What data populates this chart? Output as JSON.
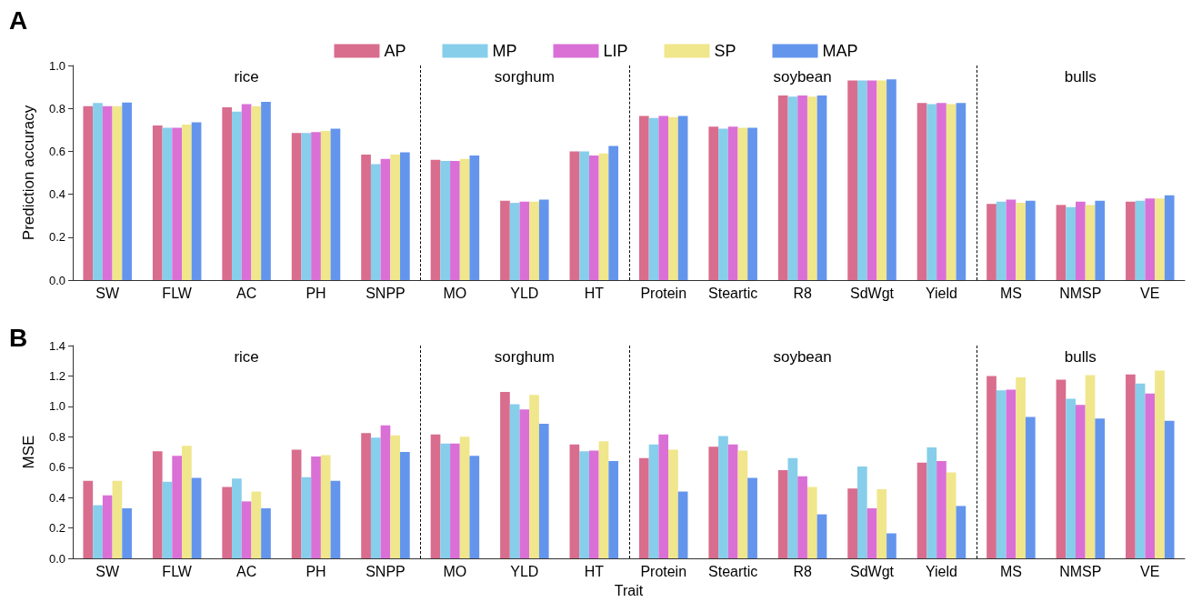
{
  "chart_data": [
    {
      "type": "bar",
      "ylabel": "Prediction accuracy",
      "legend": "top",
      "categories": [
        "SW",
        "FLW",
        "AC",
        "PH",
        "SNPP",
        "MO",
        "YLD",
        "HT",
        "Protein",
        "Steartic",
        "R8",
        "SdWgt",
        "Yield",
        "MS",
        "NMSP",
        "VE"
      ],
      "series": [
        {
          "name": "AP",
          "color": "#d96d8e",
          "values": [
            0.81,
            0.72,
            0.805,
            0.685,
            0.585,
            0.56,
            0.37,
            0.6,
            0.765,
            0.715,
            0.86,
            0.93,
            0.825,
            0.355,
            0.35,
            0.365
          ]
        },
        {
          "name": "MP",
          "color": "#87ceeb",
          "values": [
            0.825,
            0.71,
            0.785,
            0.685,
            0.54,
            0.555,
            0.36,
            0.6,
            0.755,
            0.705,
            0.855,
            0.93,
            0.82,
            0.365,
            0.34,
            0.37
          ]
        },
        {
          "name": "LIP",
          "color": "#da70d6",
          "values": [
            0.81,
            0.71,
            0.82,
            0.69,
            0.565,
            0.555,
            0.365,
            0.58,
            0.765,
            0.715,
            0.86,
            0.93,
            0.825,
            0.375,
            0.365,
            0.38
          ]
        },
        {
          "name": "SP",
          "color": "#f0e68c",
          "values": [
            0.81,
            0.725,
            0.81,
            0.695,
            0.585,
            0.565,
            0.365,
            0.59,
            0.76,
            0.71,
            0.855,
            0.93,
            0.82,
            0.36,
            0.35,
            0.38
          ]
        },
        {
          "name": "MAP",
          "color": "#6495ed",
          "values": [
            0.827,
            0.735,
            0.83,
            0.705,
            0.595,
            0.58,
            0.375,
            0.625,
            0.765,
            0.71,
            0.86,
            0.935,
            0.825,
            0.37,
            0.37,
            0.395
          ]
        }
      ],
      "ylim": [
        0,
        1.0
      ],
      "yticks": [
        {
          "value": 0,
          "label": "0.0"
        },
        {
          "value": 0.2,
          "label": "0.2"
        },
        {
          "value": 0.4,
          "label": "0.4"
        },
        {
          "value": 0.6,
          "label": "0.6"
        },
        {
          "value": 0.8,
          "label": "0.8"
        },
        {
          "value": 1.0,
          "label": "1.0"
        }
      ],
      "annotations": [
        "A",
        "rice",
        "sorghum",
        "soybean",
        "bulls"
      ]
    },
    {
      "type": "bar",
      "ylabel": "MSE",
      "xlabel": "Trait",
      "categories": [
        "SW",
        "FLW",
        "AC",
        "PH",
        "SNPP",
        "MO",
        "YLD",
        "HT",
        "Protein",
        "Steartic",
        "R8",
        "SdWgt",
        "Yield",
        "MS",
        "NMSP",
        "VE"
      ],
      "series": [
        {
          "color": "#d96d8e",
          "values": [
            0.51,
            0.705,
            0.47,
            0.715,
            0.825,
            0.815,
            1.095,
            0.75,
            0.66,
            0.735,
            0.58,
            0.46,
            0.63,
            1.2,
            1.175,
            1.21
          ]
        },
        {
          "color": "#87ceeb",
          "values": [
            0.35,
            0.505,
            0.525,
            0.535,
            0.795,
            0.755,
            1.015,
            0.705,
            0.75,
            0.805,
            0.66,
            0.605,
            0.73,
            1.105,
            1.05,
            1.15
          ]
        },
        {
          "color": "#da70d6",
          "values": [
            0.415,
            0.675,
            0.375,
            0.67,
            0.875,
            0.755,
            0.98,
            0.71,
            0.815,
            0.75,
            0.54,
            0.33,
            0.64,
            1.11,
            1.01,
            1.085
          ]
        },
        {
          "color": "#f0e68c",
          "values": [
            0.51,
            0.74,
            0.44,
            0.68,
            0.81,
            0.8,
            1.075,
            0.77,
            0.715,
            0.71,
            0.47,
            0.455,
            0.565,
            1.19,
            1.205,
            1.235
          ]
        },
        {
          "color": "#6495ed",
          "values": [
            0.33,
            0.53,
            0.33,
            0.51,
            0.7,
            0.675,
            0.885,
            0.64,
            0.44,
            0.53,
            0.29,
            0.165,
            0.345,
            0.93,
            0.92,
            0.905
          ]
        }
      ],
      "ylim": [
        0,
        1.4
      ],
      "yticks": [
        {
          "value": 0,
          "label": "0.0"
        },
        {
          "value": 0.2,
          "label": "0.2"
        },
        {
          "value": 0.4,
          "label": "0.4"
        },
        {
          "value": 0.6,
          "label": "0.6"
        },
        {
          "value": 0.8,
          "label": "0.8"
        },
        {
          "value": 1.0,
          "label": "1.0"
        },
        {
          "value": 1.2,
          "label": "1.2"
        },
        {
          "value": 1.4,
          "label": "1.4"
        }
      ],
      "annotations": [
        "B",
        "rice",
        "sorghum",
        "soybean",
        "bulls"
      ]
    }
  ]
}
